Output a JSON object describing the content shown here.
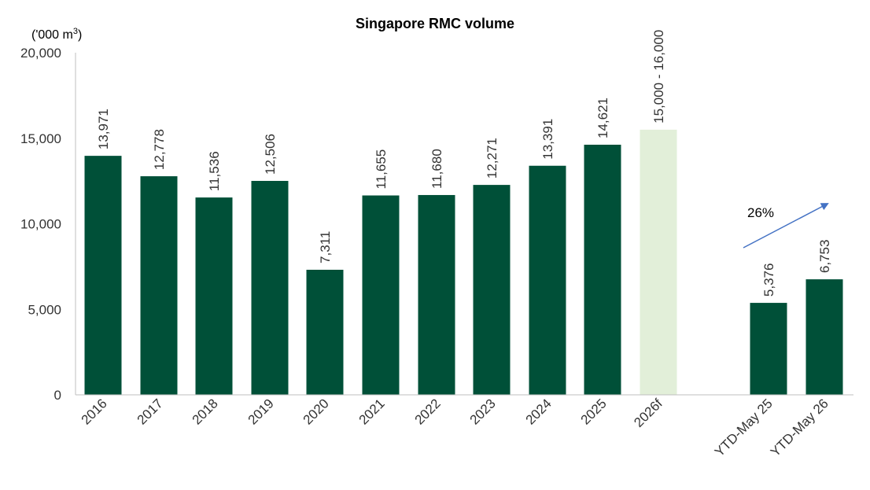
{
  "chart_data": {
    "type": "bar",
    "title": "Singapore RMC volume",
    "ylabel": "('000 m3)",
    "ylabel_base": "('000 m",
    "ylabel_sup": "3",
    "ylabel_close": ")",
    "ylim": [
      0,
      20000
    ],
    "yticks": [
      0,
      5000,
      10000,
      15000,
      20000
    ],
    "ytick_labels": [
      "0",
      "5,000",
      "10,000",
      "15,000",
      "20,000"
    ],
    "grid": false,
    "categories": [
      "2016",
      "2017",
      "2018",
      "2019",
      "2020",
      "2021",
      "2022",
      "2023",
      "2024",
      "2025",
      "2026f",
      "YTD-May 25",
      "YTD-May 26"
    ],
    "values": [
      13971,
      12778,
      11536,
      12506,
      7311,
      11655,
      11680,
      12271,
      13391,
      14621,
      15500,
      5376,
      6753
    ],
    "forecast_range": [
      15000,
      16000
    ],
    "data_labels": [
      "13,971",
      "12,778",
      "11,536",
      "12,506",
      "7,311",
      "11,655",
      "11,680",
      "12,271",
      "13,391",
      "14,621",
      "15,000 - 16,000",
      "5,376",
      "6,753"
    ],
    "bar_styles": [
      "actual",
      "actual",
      "actual",
      "actual",
      "actual",
      "actual",
      "actual",
      "actual",
      "actual",
      "actual",
      "forecast",
      "actual",
      "actual"
    ],
    "annotation": {
      "text": "26%",
      "from": "YTD-May 25",
      "to": "YTD-May 26"
    }
  },
  "colors": {
    "actual": "#005038",
    "forecast": "#e2efd9",
    "arrow": "#4472c4",
    "axis": "#bfbfbf"
  }
}
